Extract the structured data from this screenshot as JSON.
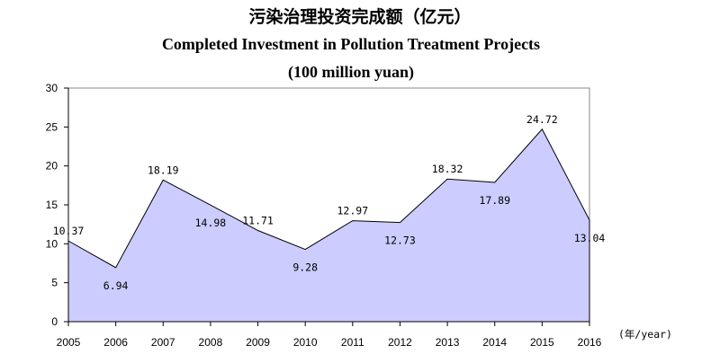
{
  "chart_data": {
    "type": "area",
    "title": "污染治理投资完成额（亿元）",
    "subtitle_en": "Completed Investment in Pollution Treatment Projects",
    "unit_en": "(100 million yuan)",
    "xlabel": "(年/year)",
    "ylabel": "",
    "categories": [
      "2005",
      "2006",
      "2007",
      "2008",
      "2009",
      "2010",
      "2011",
      "2012",
      "2013",
      "2014",
      "2015",
      "2016"
    ],
    "series": [
      {
        "values": [
          10.37,
          6.94,
          18.19,
          14.98,
          11.71,
          9.28,
          12.97,
          12.73,
          18.32,
          17.89,
          24.72,
          13.04
        ]
      }
    ],
    "data_labels": [
      "10.37",
      "6.94",
      "18.19",
      "14.98",
      "11.71",
      "9.28",
      "12.97",
      "12.73",
      "18.32",
      "17.89",
      "24.72",
      "13.04"
    ],
    "ylim": [
      0,
      30
    ],
    "yticks": [
      0,
      5,
      10,
      15,
      20,
      25,
      30
    ],
    "grid": false,
    "colors": {
      "fill": "#ccccff",
      "line": "#000000"
    }
  }
}
